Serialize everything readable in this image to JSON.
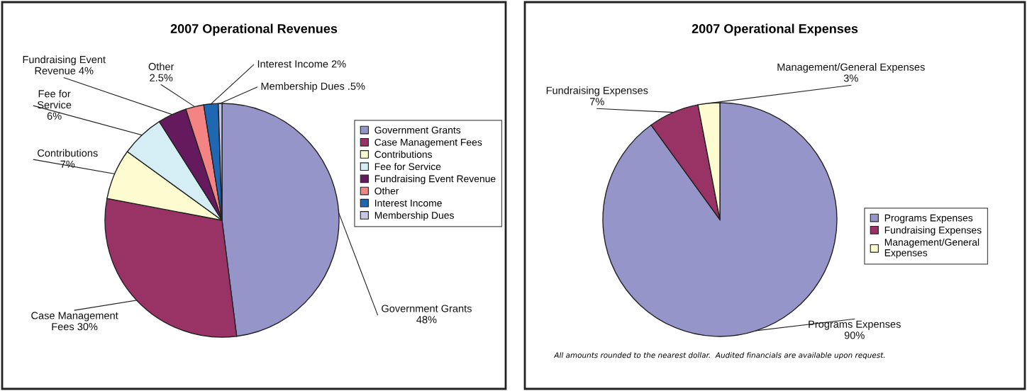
{
  "chart_data": [
    {
      "type": "pie",
      "title": "2007 Operational Revenues",
      "categories": [
        "Government Grants",
        "Case Management Fees",
        "Contributions",
        "Fee for Service",
        "Fundraising Event Revenue",
        "Other",
        "Interest Income",
        "Membership Dues"
      ],
      "values": [
        48,
        30,
        7,
        6,
        4,
        2.5,
        2,
        0.5
      ],
      "colors": [
        "#9595ca",
        "#993366",
        "#fdfbd0",
        "#d5eef5",
        "#661a5e",
        "#f48484",
        "#1f66b3",
        "#c8c8e4"
      ],
      "value_labels": [
        "Government Grants\n48%",
        "Case Management\nFees 30%",
        "Contributions\n7%",
        "Fee for\nService\n6%",
        "Fundraising Event\nRevenue 4%",
        "Other\n2.5%",
        "Interest Income 2%",
        "Membership Dues .5%"
      ],
      "legend": "right"
    },
    {
      "type": "pie",
      "title": "2007 Operational Expenses",
      "categories": [
        "Programs Expenses",
        "Fundraising Expenses",
        "Management/General\nExpenses"
      ],
      "values": [
        90,
        7,
        3
      ],
      "colors": [
        "#9595ca",
        "#993366",
        "#fdfbd0"
      ],
      "value_labels": [
        "Programs Expenses\n90%",
        "Fundraising Expenses\n7%",
        "Management/General Expenses\n3%"
      ],
      "legend": "right",
      "annotations": [
        "All amounts rounded to the nearest dollar.  Audited financials are available upon request."
      ]
    }
  ]
}
